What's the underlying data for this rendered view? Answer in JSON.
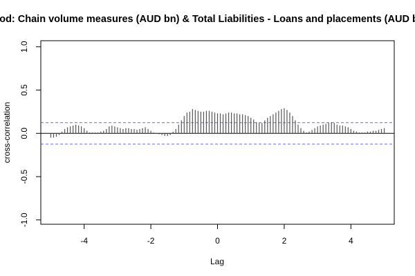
{
  "chart_data": {
    "type": "bar",
    "title": "Food: Chain volume measures (AUD bn) & Total Liabilities - Loans and placements (AUD bn)",
    "xlabel": "Lag",
    "ylabel": "cross-correlation",
    "xlim": [
      -5.3,
      5.3
    ],
    "ylim": [
      -1.05,
      1.07
    ],
    "x_ticks": [
      -4,
      -2,
      0,
      2,
      4
    ],
    "x_tick_labels": [
      "-4",
      "-2",
      "0",
      "2",
      "4"
    ],
    "y_ticks": [
      -1.0,
      -0.5,
      0.0,
      0.5,
      1.0
    ],
    "y_tick_labels": [
      "-1.0",
      "-0.5",
      "0.0",
      "0.5",
      "1.0"
    ],
    "confidence_band": 0.124,
    "grid": false,
    "colors": {
      "bars": "#555555",
      "band": "#6666ee",
      "zero_line": "#000000",
      "frame": "#000000"
    },
    "series": [
      {
        "x": [
          -5.0,
          -4.9167,
          -4.8333,
          -4.75,
          -4.6667,
          -4.5833,
          -4.5,
          -4.4167,
          -4.3333,
          -4.25,
          -4.1667,
          -4.0833,
          -4.0,
          -3.9167,
          -3.8333,
          -3.75,
          -3.6667,
          -3.5833,
          -3.5,
          -3.4167,
          -3.3333,
          -3.25,
          -3.1667,
          -3.0833,
          -3.0,
          -2.9167,
          -2.8333,
          -2.75,
          -2.6667,
          -2.5833,
          -2.5,
          -2.4167,
          -2.3333,
          -2.25,
          -2.1667,
          -2.0833,
          -2.0,
          -1.9167,
          -1.8333,
          -1.75,
          -1.6667,
          -1.5833,
          -1.5,
          -1.4167,
          -1.3333,
          -1.25,
          -1.1667,
          -1.0833,
          -1.0,
          -0.9167,
          -0.8333,
          -0.75,
          -0.6667,
          -0.5833,
          -0.5,
          -0.4167,
          -0.3333,
          -0.25,
          -0.1667,
          -0.0833,
          0.0,
          0.0833,
          0.1667,
          0.25,
          0.3333,
          0.4167,
          0.5,
          0.5833,
          0.6667,
          0.75,
          0.8333,
          0.9167,
          1.0,
          1.0833,
          1.1667,
          1.25,
          1.3333,
          1.4167,
          1.5,
          1.5833,
          1.6667,
          1.75,
          1.8333,
          1.9167,
          2.0,
          2.0833,
          2.1667,
          2.25,
          2.3333,
          2.4167,
          2.5,
          2.5833,
          2.6667,
          2.75,
          2.8333,
          2.9167,
          3.0,
          3.0833,
          3.1667,
          3.25,
          3.3333,
          3.4167,
          3.5,
          3.5833,
          3.6667,
          3.75,
          3.8333,
          3.9167,
          4.0,
          4.0833,
          4.1667,
          4.25,
          4.3333,
          4.4167,
          4.5,
          4.5833,
          4.6667,
          4.75,
          4.8333,
          4.9167,
          5.0
        ],
        "values": [
          -0.05,
          -0.05,
          -0.04,
          -0.02,
          0.02,
          0.05,
          0.07,
          0.08,
          0.09,
          0.1,
          0.09,
          0.08,
          0.06,
          0.03,
          0.01,
          0.01,
          0.01,
          0.01,
          0.02,
          0.03,
          0.05,
          0.08,
          0.09,
          0.08,
          0.07,
          0.06,
          0.05,
          0.06,
          0.06,
          0.05,
          0.05,
          0.04,
          0.05,
          0.06,
          0.07,
          0.05,
          0.03,
          0.01,
          0.0,
          -0.01,
          -0.02,
          -0.03,
          -0.03,
          -0.02,
          0.02,
          0.05,
          0.1,
          0.15,
          0.2,
          0.24,
          0.25,
          0.28,
          0.27,
          0.26,
          0.25,
          0.25,
          0.26,
          0.26,
          0.25,
          0.24,
          0.23,
          0.23,
          0.22,
          0.23,
          0.24,
          0.24,
          0.23,
          0.23,
          0.22,
          0.22,
          0.21,
          0.2,
          0.18,
          0.16,
          0.13,
          0.12,
          0.12,
          0.15,
          0.18,
          0.2,
          0.22,
          0.24,
          0.26,
          0.28,
          0.29,
          0.27,
          0.24,
          0.2,
          0.15,
          0.1,
          0.06,
          0.03,
          0.01,
          0.02,
          0.04,
          0.06,
          0.08,
          0.09,
          0.1,
          0.11,
          0.12,
          0.13,
          0.12,
          0.1,
          0.09,
          0.09,
          0.08,
          0.07,
          0.05,
          0.03,
          0.02,
          0.01,
          0.01,
          0.01,
          0.02,
          0.02,
          0.03,
          0.03,
          0.04,
          0.05,
          0.06
        ]
      }
    ]
  }
}
